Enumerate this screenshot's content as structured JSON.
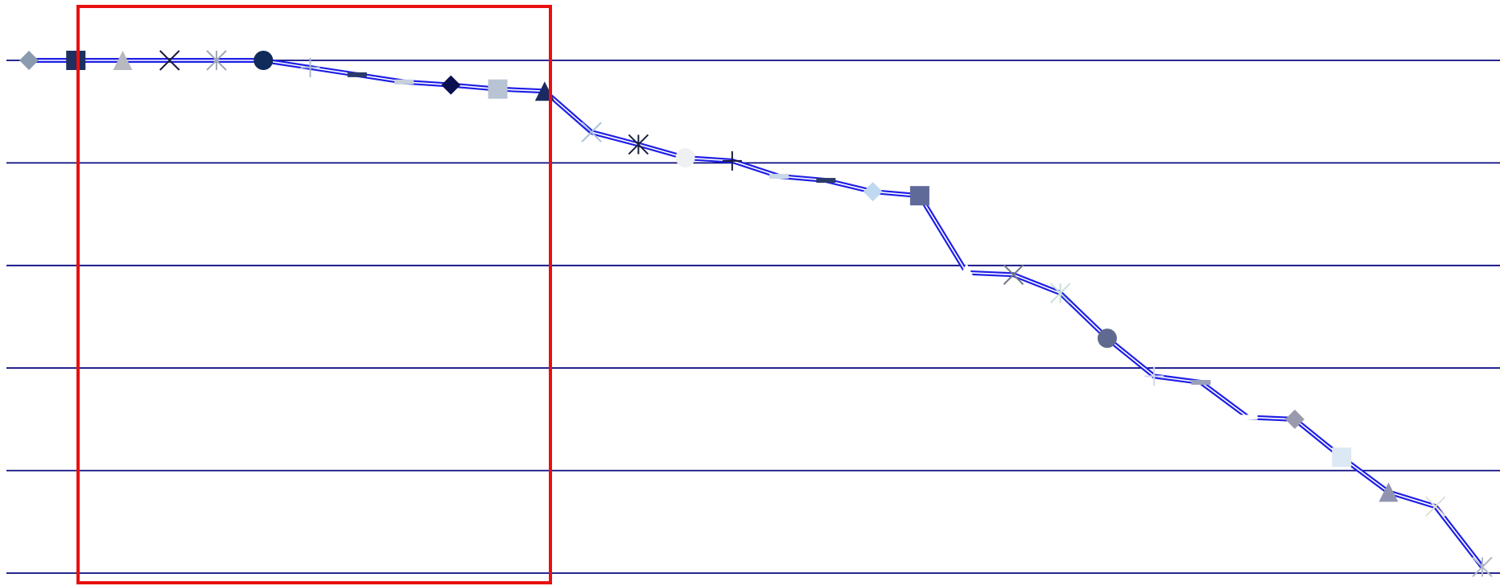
{
  "chart_data": {
    "type": "line",
    "categories": [
      null,
      null,
      null,
      null,
      null,
      null,
      null,
      null,
      null,
      null,
      null,
      null,
      null,
      null,
      null,
      null,
      null,
      null,
      null,
      null,
      null,
      null,
      null,
      null,
      null,
      null,
      null,
      null,
      null,
      null,
      null,
      null
    ],
    "values": [
      5.0,
      5.0,
      5.0,
      5.0,
      5.0,
      5.0,
      4.93,
      4.86,
      4.79,
      4.76,
      4.72,
      4.7,
      4.3,
      4.18,
      4.05,
      4.02,
      3.87,
      3.83,
      3.72,
      3.68,
      2.93,
      2.91,
      2.73,
      2.29,
      1.92,
      1.86,
      1.52,
      1.5,
      1.13,
      0.79,
      0.65,
      0.06
    ],
    "color": "#1f1fe6",
    "ylim": [
      0,
      5
    ],
    "yticks": [
      0,
      1,
      2,
      3,
      4,
      5
    ],
    "grid": true,
    "grid_color": "#0a0a80",
    "markers": [
      {
        "shape": "diamond",
        "color": "#8a9bb0"
      },
      {
        "shape": "square",
        "color": "#1f2f5f"
      },
      {
        "shape": "triangle",
        "color": "#b8b8c0"
      },
      {
        "shape": "x",
        "color": "#1a1a3a"
      },
      {
        "shape": "asterisk",
        "color": "#a0a8b8"
      },
      {
        "shape": "circle",
        "color": "#102a5a"
      },
      {
        "shape": "plus",
        "color": "#a8b8d8"
      },
      {
        "shape": "dash",
        "color": "#2a3a6a"
      },
      {
        "shape": "dash",
        "color": "#c8d0dc"
      },
      {
        "shape": "diamond",
        "color": "#0a1050"
      },
      {
        "shape": "square",
        "color": "#b8c4d4"
      },
      {
        "shape": "triangle",
        "color": "#1a2a60"
      },
      {
        "shape": "x",
        "color": "#a8c0e0"
      },
      {
        "shape": "asterisk",
        "color": "#1a2040"
      },
      {
        "shape": "circle",
        "color": "#eef0f2"
      },
      {
        "shape": "plus",
        "color": "#1a1a3a"
      },
      {
        "shape": "dash",
        "color": "#c8d8e8"
      },
      {
        "shape": "dash",
        "color": "#2a3a6a"
      },
      {
        "shape": "diamond",
        "color": "#c0d8f0"
      },
      {
        "shape": "square",
        "color": "#606a98"
      },
      {
        "shape": "triangle",
        "color": "#ffffff"
      },
      {
        "shape": "x",
        "color": "#707888"
      },
      {
        "shape": "asterisk",
        "color": "#c8e0d8"
      },
      {
        "shape": "circle",
        "color": "#606a90"
      },
      {
        "shape": "plus",
        "color": "#d0d8f0"
      },
      {
        "shape": "dash",
        "color": "#9aa0b8"
      },
      {
        "shape": "dash",
        "color": "#ffffff"
      },
      {
        "shape": "diamond",
        "color": "#9a9aae"
      },
      {
        "shape": "square",
        "color": "#dce8f4"
      },
      {
        "shape": "triangle",
        "color": "#9094b0"
      },
      {
        "shape": "x",
        "color": "#e0e0d8"
      },
      {
        "shape": "asterisk",
        "color": "#b0b8c8"
      }
    ]
  }
}
